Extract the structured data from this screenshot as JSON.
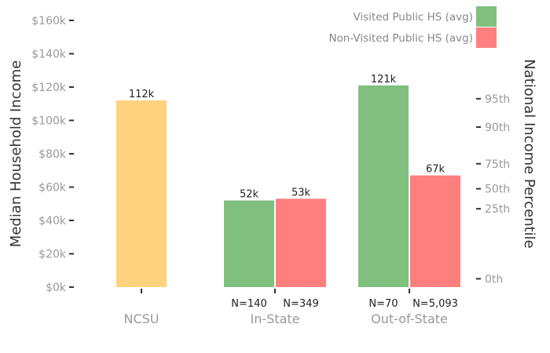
{
  "chart_data": {
    "type": "bar",
    "categories": [
      "NCSU",
      "In-State",
      "Out-of-State"
    ],
    "bars": [
      {
        "category": "NCSU",
        "series": "ncsu",
        "value": 112000,
        "label": "112k",
        "n_label": "",
        "color": "#FFD27F"
      },
      {
        "category": "In-State",
        "series": "visited",
        "value": 52000,
        "label": "52k",
        "n_label": "N=140",
        "color": "#81BF7F"
      },
      {
        "category": "In-State",
        "series": "non_visited",
        "value": 53000,
        "label": "53k",
        "n_label": "N=349",
        "color": "#FF7F7F"
      },
      {
        "category": "Out-of-State",
        "series": "visited",
        "value": 121000,
        "label": "121k",
        "n_label": "N=70",
        "color": "#81BF7F"
      },
      {
        "category": "Out-of-State",
        "series": "non_visited",
        "value": 67000,
        "label": "67k",
        "n_label": "N=5,093",
        "color": "#FF7F7F"
      }
    ],
    "legend": {
      "placement": "top-right",
      "entries": [
        {
          "name": "Visited Public HS (avg)",
          "color": "#81BF7F"
        },
        {
          "name": "Non-Visited Public HS (avg)",
          "color": "#FF7F7F"
        }
      ]
    },
    "ylabel": "Median Household Income",
    "y2label": "National Income Percentile",
    "ylim": [
      0,
      160000
    ],
    "yticks": [
      {
        "value": 0,
        "label": "$0k"
      },
      {
        "value": 20000,
        "label": "$20k"
      },
      {
        "value": 40000,
        "label": "$40k"
      },
      {
        "value": 60000,
        "label": "$60k"
      },
      {
        "value": 80000,
        "label": "$80k"
      },
      {
        "value": 100000,
        "label": "$100k"
      },
      {
        "value": 120000,
        "label": "$120k"
      },
      {
        "value": 140000,
        "label": "$140k"
      },
      {
        "value": 160000,
        "label": "$160k"
      }
    ],
    "y2ticks": [
      {
        "value": 5000,
        "label": "0th"
      },
      {
        "value": 47000,
        "label": "25th"
      },
      {
        "value": 59000,
        "label": "50th"
      },
      {
        "value": 74000,
        "label": "75th"
      },
      {
        "value": 96000,
        "label": "90th"
      },
      {
        "value": 113000,
        "label": "95th"
      }
    ],
    "grid": false
  }
}
